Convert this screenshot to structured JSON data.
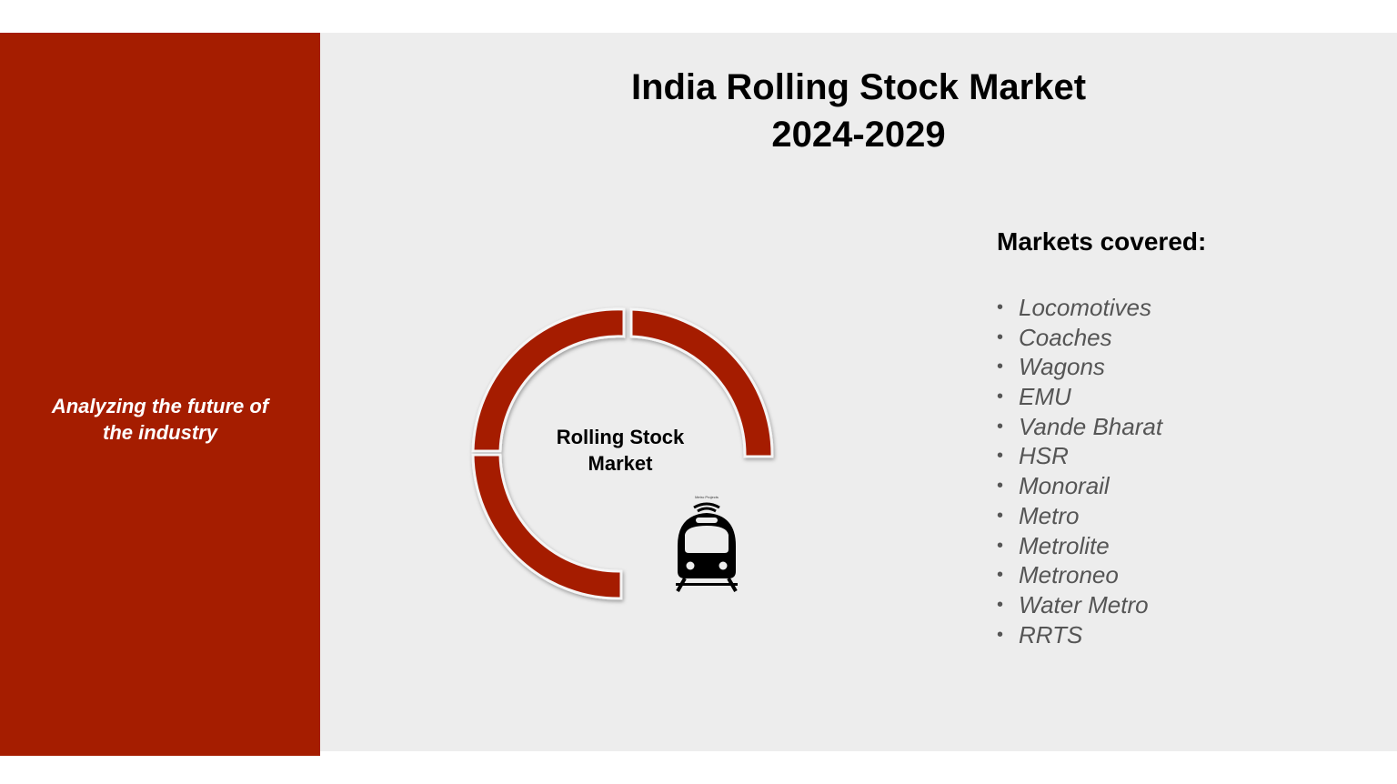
{
  "title": {
    "line1": "India Rolling Stock Market",
    "line2": "2024-2029"
  },
  "sidebar": {
    "tagline_line1": "Analyzing the future of",
    "tagline_line2": "the industry",
    "color": "#a51d00"
  },
  "diagram": {
    "center_label_line1": "Rolling Stock",
    "center_label_line2": "Market",
    "ring_color": "#a51d00",
    "icon": "train-icon",
    "icon_caption": "Metro Projects"
  },
  "markets": {
    "heading": "Markets covered:",
    "items": [
      "Locomotives",
      "Coaches",
      "Wagons",
      "EMU",
      "Vande Bharat",
      "HSR",
      "Monorail",
      "Metro",
      "Metrolite",
      "Metroneo",
      "Water Metro",
      "RRTS"
    ]
  }
}
